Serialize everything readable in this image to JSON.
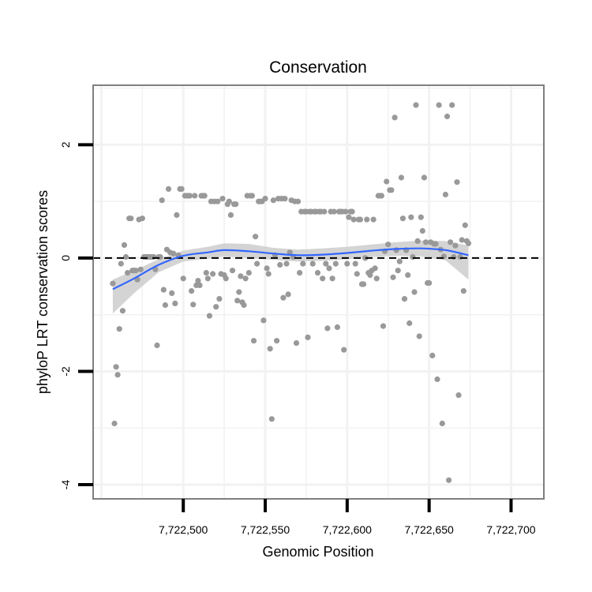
{
  "chart_data": {
    "type": "scatter",
    "title": "Conservation",
    "xlabel": "Genomic Position",
    "ylabel": "phyloP LRT conservation scores",
    "xlim": [
      7722445,
      7722720
    ],
    "ylim": [
      -4.25,
      3.05
    ],
    "x_ticks": [
      7722500,
      7722550,
      7722600,
      7722650,
      7722700
    ],
    "x_tick_labels": [
      "7,722,500",
      "7,722,550",
      "7,722,600",
      "7,722,650",
      "7,722,700"
    ],
    "y_ticks": [
      -4,
      -2,
      0,
      2
    ],
    "y_tick_labels": [
      "-4",
      "-2",
      "0",
      "2"
    ],
    "reference_line_y": 0,
    "colors": {
      "points": "#999999",
      "smooth_line": "#3366ff",
      "ribbon": "#cccccc",
      "panel_border": "#7f7f7f",
      "grid": "#f2f2f2"
    },
    "points": [
      [
        7722457,
        -0.45
      ],
      [
        7722458,
        -2.92
      ],
      [
        7722459,
        -1.92
      ],
      [
        7722460,
        -2.06
      ],
      [
        7722461,
        -1.25
      ],
      [
        7722462,
        -0.1
      ],
      [
        7722463,
        -0.93
      ],
      [
        7722464,
        0.23
      ],
      [
        7722465,
        0.02
      ],
      [
        7722466,
        -0.26
      ],
      [
        7722467,
        0.7
      ],
      [
        7722468,
        0.7
      ],
      [
        7722469,
        -0.22
      ],
      [
        7722470,
        -0.22
      ],
      [
        7722471,
        -0.22
      ],
      [
        7722472,
        -0.38
      ],
      [
        7722473,
        0.68
      ],
      [
        7722474,
        -0.2
      ],
      [
        7722475,
        0.7
      ],
      [
        7722476,
        0.02
      ],
      [
        7722477,
        0.02
      ],
      [
        7722478,
        0.02
      ],
      [
        7722479,
        0.02
      ],
      [
        7722480,
        0.02
      ],
      [
        7722481,
        0.02
      ],
      [
        7722482,
        0.02
      ],
      [
        7722483,
        -0.2
      ],
      [
        7722484,
        -1.54
      ],
      [
        7722485,
        0.02
      ],
      [
        7722486,
        0.02
      ],
      [
        7722487,
        1.02
      ],
      [
        7722488,
        -0.56
      ],
      [
        7722489,
        -0.83
      ],
      [
        7722490,
        0.15
      ],
      [
        7722491,
        1.22
      ],
      [
        7722492,
        0.1
      ],
      [
        7722493,
        -0.62
      ],
      [
        7722494,
        0.08
      ],
      [
        7722495,
        -0.8
      ],
      [
        7722496,
        0.76
      ],
      [
        7722497,
        0.05
      ],
      [
        7722498,
        1.22
      ],
      [
        7722499,
        1.22
      ],
      [
        7722500,
        -0.36
      ],
      [
        7722501,
        1.1
      ],
      [
        7722502,
        1.1
      ],
      [
        7722503,
        1.1
      ],
      [
        7722504,
        1.1
      ],
      [
        7722505,
        -0.58
      ],
      [
        7722506,
        -0.82
      ],
      [
        7722507,
        1.1
      ],
      [
        7722508,
        -0.48
      ],
      [
        7722509,
        -0.4
      ],
      [
        7722510,
        -0.48
      ],
      [
        7722511,
        1.1
      ],
      [
        7722512,
        1.1
      ],
      [
        7722513,
        1.1
      ],
      [
        7722514,
        -0.26
      ],
      [
        7722515,
        -0.36
      ],
      [
        7722516,
        -1.02
      ],
      [
        7722517,
        1.0
      ],
      [
        7722518,
        -0.28
      ],
      [
        7722519,
        1.0
      ],
      [
        7722520,
        -0.86
      ],
      [
        7722521,
        1.0
      ],
      [
        7722522,
        -0.72
      ],
      [
        7722523,
        -0.28
      ],
      [
        7722524,
        1.05
      ],
      [
        7722525,
        -0.3
      ],
      [
        7722526,
        -0.36
      ],
      [
        7722527,
        0.95
      ],
      [
        7722528,
        1.0
      ],
      [
        7722529,
        0.76
      ],
      [
        7722530,
        -0.22
      ],
      [
        7722531,
        0.95
      ],
      [
        7722532,
        0.95
      ],
      [
        7722533,
        -0.75
      ],
      [
        7722534,
        -0.6
      ],
      [
        7722535,
        -0.32
      ],
      [
        7722536,
        -0.78
      ],
      [
        7722537,
        -0.83
      ],
      [
        7722538,
        -0.36
      ],
      [
        7722539,
        1.1
      ],
      [
        7722540,
        -0.26
      ],
      [
        7722541,
        1.1
      ],
      [
        7722542,
        1.1
      ],
      [
        7722543,
        -1.46
      ],
      [
        7722544,
        0.38
      ],
      [
        7722545,
        -0.1
      ],
      [
        7722546,
        1.0
      ],
      [
        7722547,
        1.0
      ],
      [
        7722548,
        1.0
      ],
      [
        7722549,
        -1.1
      ],
      [
        7722550,
        1.05
      ],
      [
        7722551,
        -0.18
      ],
      [
        7722552,
        -0.28
      ],
      [
        7722553,
        -1.6
      ],
      [
        7722554,
        -2.84
      ],
      [
        7722555,
        1.02
      ],
      [
        7722556,
        0.05
      ],
      [
        7722557,
        -1.46
      ],
      [
        7722558,
        1.05
      ],
      [
        7722559,
        -0.12
      ],
      [
        7722560,
        1.05
      ],
      [
        7722561,
        -0.7
      ],
      [
        7722562,
        1.05
      ],
      [
        7722563,
        -0.1
      ],
      [
        7722564,
        -0.64
      ],
      [
        7722565,
        0.1
      ],
      [
        7722566,
        1.02
      ],
      [
        7722567,
        0.02
      ],
      [
        7722568,
        1.0
      ],
      [
        7722569,
        -1.5
      ],
      [
        7722570,
        1.0
      ],
      [
        7722571,
        -0.26
      ],
      [
        7722572,
        0.82
      ],
      [
        7722573,
        -0.1
      ],
      [
        7722574,
        0.82
      ],
      [
        7722575,
        0.82
      ],
      [
        7722576,
        -1.4
      ],
      [
        7722577,
        0.82
      ],
      [
        7722578,
        0.82
      ],
      [
        7722579,
        -0.1
      ],
      [
        7722580,
        0.82
      ],
      [
        7722581,
        0.82
      ],
      [
        7722582,
        -0.26
      ],
      [
        7722583,
        0.82
      ],
      [
        7722584,
        0.82
      ],
      [
        7722585,
        -0.36
      ],
      [
        7722586,
        0.82
      ],
      [
        7722587,
        -0.1
      ],
      [
        7722588,
        -1.24
      ],
      [
        7722589,
        -0.18
      ],
      [
        7722590,
        0.82
      ],
      [
        7722591,
        -0.36
      ],
      [
        7722592,
        0.82
      ],
      [
        7722593,
        -0.1
      ],
      [
        7722594,
        -1.22
      ],
      [
        7722595,
        0.82
      ],
      [
        7722596,
        0.82
      ],
      [
        7722597,
        0.82
      ],
      [
        7722598,
        -1.62
      ],
      [
        7722599,
        0.82
      ],
      [
        7722600,
        -0.1
      ],
      [
        7722601,
        0.72
      ],
      [
        7722602,
        0.82
      ],
      [
        7722603,
        0.82
      ],
      [
        7722604,
        0.68
      ],
      [
        7722605,
        -0.1
      ],
      [
        7722606,
        -0.28
      ],
      [
        7722607,
        0.68
      ],
      [
        7722608,
        0.68
      ],
      [
        7722609,
        -0.46
      ],
      [
        7722610,
        -0.46
      ],
      [
        7722611,
        0.0
      ],
      [
        7722612,
        0.68
      ],
      [
        7722613,
        -0.26
      ],
      [
        7722614,
        -0.3
      ],
      [
        7722615,
        -0.22
      ],
      [
        7722616,
        0.68
      ],
      [
        7722617,
        -0.18
      ],
      [
        7722618,
        -0.36
      ],
      [
        7722619,
        1.1
      ],
      [
        7722620,
        1.1
      ],
      [
        7722621,
        1.1
      ],
      [
        7722622,
        -1.2
      ],
      [
        7722623,
        0.12
      ],
      [
        7722624,
        1.35
      ],
      [
        7722625,
        0.24
      ],
      [
        7722626,
        1.2
      ],
      [
        7722627,
        1.2
      ],
      [
        7722628,
        -0.34
      ],
      [
        7722629,
        2.48
      ],
      [
        7722630,
        0.14
      ],
      [
        7722631,
        -0.22
      ],
      [
        7722632,
        -0.06
      ],
      [
        7722633,
        1.42
      ],
      [
        7722634,
        0.7
      ],
      [
        7722635,
        -0.72
      ],
      [
        7722636,
        0.14
      ],
      [
        7722637,
        -0.3
      ],
      [
        7722638,
        -1.15
      ],
      [
        7722639,
        0.72
      ],
      [
        7722640,
        0.02
      ],
      [
        7722641,
        -0.6
      ],
      [
        7722642,
        2.7
      ],
      [
        7722643,
        0.3
      ],
      [
        7722644,
        -1.38
      ],
      [
        7722645,
        0.72
      ],
      [
        7722646,
        0.48
      ],
      [
        7722647,
        1.42
      ],
      [
        7722648,
        0.28
      ],
      [
        7722649,
        -0.44
      ],
      [
        7722650,
        -0.44
      ],
      [
        7722651,
        0.28
      ],
      [
        7722652,
        -1.72
      ],
      [
        7722653,
        0.25
      ],
      [
        7722654,
        0.25
      ],
      [
        7722655,
        -2.14
      ],
      [
        7722656,
        2.7
      ],
      [
        7722657,
        0.15
      ],
      [
        7722658,
        -2.92
      ],
      [
        7722659,
        0.03
      ],
      [
        7722660,
        1.12
      ],
      [
        7722661,
        2.5
      ],
      [
        7722662,
        -3.92
      ],
      [
        7722663,
        0.28
      ],
      [
        7722664,
        2.7
      ],
      [
        7722665,
        0.02
      ],
      [
        7722666,
        0.22
      ],
      [
        7722667,
        1.34
      ],
      [
        7722668,
        -2.42
      ],
      [
        7722669,
        0.02
      ],
      [
        7722670,
        0.32
      ],
      [
        7722671,
        -0.58
      ],
      [
        7722672,
        0.58
      ],
      [
        7722673,
        0.3
      ],
      [
        7722674,
        0.26
      ]
    ],
    "smooth_curve": [
      [
        7722457,
        -0.55
      ],
      [
        7722470,
        -0.36
      ],
      [
        7722485,
        -0.12
      ],
      [
        7722500,
        0.04
      ],
      [
        7722515,
        0.1
      ],
      [
        7722525,
        0.14
      ],
      [
        7722540,
        0.12
      ],
      [
        7722555,
        0.08
      ],
      [
        7722570,
        0.05
      ],
      [
        7722585,
        0.06
      ],
      [
        7722600,
        0.09
      ],
      [
        7722615,
        0.13
      ],
      [
        7722630,
        0.16
      ],
      [
        7722645,
        0.17
      ],
      [
        7722660,
        0.14
      ],
      [
        7722674,
        0.05
      ]
    ],
    "ribbon_upper": [
      [
        7722457,
        -0.38
      ],
      [
        7722470,
        -0.22
      ],
      [
        7722485,
        -0.02
      ],
      [
        7722500,
        0.13
      ],
      [
        7722515,
        0.2
      ],
      [
        7722525,
        0.26
      ],
      [
        7722540,
        0.25
      ],
      [
        7722555,
        0.18
      ],
      [
        7722570,
        0.15
      ],
      [
        7722585,
        0.17
      ],
      [
        7722600,
        0.2
      ],
      [
        7722615,
        0.24
      ],
      [
        7722630,
        0.28
      ],
      [
        7722645,
        0.31
      ],
      [
        7722660,
        0.3
      ],
      [
        7722674,
        0.22
      ]
    ],
    "ribbon_lower": [
      [
        7722457,
        -0.98
      ],
      [
        7722470,
        -0.62
      ],
      [
        7722485,
        -0.25
      ],
      [
        7722500,
        -0.06
      ],
      [
        7722515,
        -0.01
      ],
      [
        7722525,
        0.03
      ],
      [
        7722540,
        0.0
      ],
      [
        7722555,
        -0.03
      ],
      [
        7722570,
        -0.06
      ],
      [
        7722585,
        -0.05
      ],
      [
        7722600,
        -0.02
      ],
      [
        7722615,
        0.02
      ],
      [
        7722630,
        0.04
      ],
      [
        7722645,
        0.03
      ],
      [
        7722660,
        -0.04
      ],
      [
        7722674,
        -0.38
      ]
    ]
  }
}
